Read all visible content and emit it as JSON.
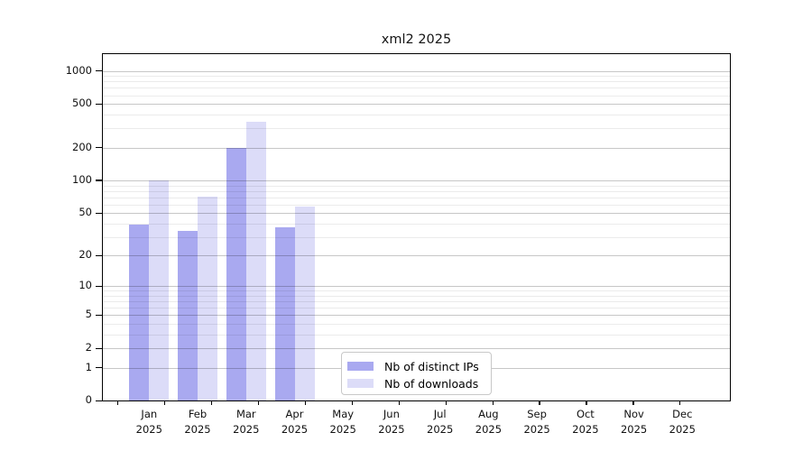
{
  "chart_data": {
    "type": "bar",
    "title": "xml2 2025",
    "categories": [
      "Jan",
      "Feb",
      "Mar",
      "Apr",
      "May",
      "Jun",
      "Jul",
      "Aug",
      "Sep",
      "Oct",
      "Nov",
      "Dec"
    ],
    "year_label": "2025",
    "series": [
      {
        "name": "Nb of distinct IPs",
        "color": "#a9a9f0",
        "values": [
          39,
          34,
          200,
          37,
          0,
          0,
          0,
          0,
          0,
          0,
          0,
          0
        ]
      },
      {
        "name": "Nb of downloads",
        "color": "#dcdcf8",
        "values": [
          100,
          71,
          344,
          57,
          0,
          0,
          0,
          0,
          0,
          0,
          0,
          0
        ]
      }
    ],
    "y_axis": {
      "scale": "log10(1+v)",
      "ticks": [
        1000,
        500,
        200,
        100,
        50,
        20,
        10,
        5,
        2,
        1,
        0
      ],
      "minor_gridlines": [
        3,
        4,
        6,
        7,
        8,
        9,
        30,
        40,
        60,
        70,
        80,
        90,
        300,
        400,
        600,
        700,
        800,
        900
      ],
      "ylim": [
        0,
        1400
      ]
    },
    "x_axis": {
      "boundary_ticks": 13
    },
    "legend": {
      "position": "lower center"
    },
    "grid": true
  },
  "colors": {
    "major_grid": "rgba(0,0,0,0.22)",
    "minor_grid": "rgba(0,0,0,0.08)",
    "axis": "#000000",
    "background": "#ffffff",
    "text": "#111111"
  }
}
